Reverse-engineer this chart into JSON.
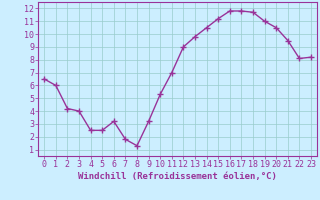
{
  "x": [
    0,
    1,
    2,
    3,
    4,
    5,
    6,
    7,
    8,
    9,
    10,
    11,
    12,
    13,
    14,
    15,
    16,
    17,
    18,
    19,
    20,
    21,
    22,
    23
  ],
  "y": [
    6.5,
    6.0,
    4.2,
    4.0,
    2.5,
    2.5,
    3.2,
    1.8,
    1.3,
    3.2,
    5.3,
    7.0,
    9.0,
    9.8,
    10.5,
    11.2,
    11.8,
    11.8,
    11.7,
    11.0,
    10.5,
    9.5,
    8.1,
    8.2
  ],
  "line_color": "#993399",
  "marker": "+",
  "marker_size": 4,
  "bg_color": "#cceeff",
  "grid_color": "#99cccc",
  "xlabel": "Windchill (Refroidissement éolien,°C)",
  "xlim": [
    -0.5,
    23.5
  ],
  "ylim": [
    0.5,
    12.5
  ],
  "yticks": [
    1,
    2,
    3,
    4,
    5,
    6,
    7,
    8,
    9,
    10,
    11,
    12
  ],
  "xticks": [
    0,
    1,
    2,
    3,
    4,
    5,
    6,
    7,
    8,
    9,
    10,
    11,
    12,
    13,
    14,
    15,
    16,
    17,
    18,
    19,
    20,
    21,
    22,
    23
  ],
  "xlabel_fontsize": 6.5,
  "tick_fontsize": 6,
  "line_width": 1.0,
  "axis_color": "#993399",
  "spine_color": "#993399"
}
